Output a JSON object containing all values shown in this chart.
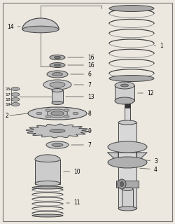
{
  "bg_color": "#ece8e0",
  "border_color": "#777777",
  "line_color": "#444444",
  "part_color": "#cccccc",
  "dark_color": "#333333",
  "white_color": "#f0f0f0"
}
